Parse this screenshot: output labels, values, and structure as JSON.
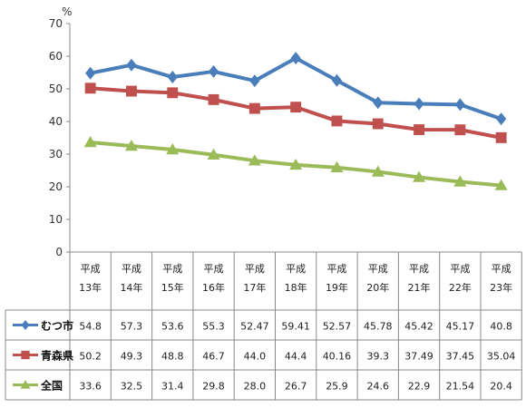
{
  "chart_data": {
    "type": "line",
    "ylabel": "%",
    "ylim": [
      0,
      70
    ],
    "yticks": [
      0,
      10,
      20,
      30,
      40,
      50,
      60,
      70
    ],
    "grid": false,
    "legend": "data-table",
    "categories": [
      [
        "平成",
        "13年"
      ],
      [
        "平成",
        "14年"
      ],
      [
        "平成",
        "15年"
      ],
      [
        "平成",
        "16年"
      ],
      [
        "平成",
        "17年"
      ],
      [
        "平成",
        "18年"
      ],
      [
        "平成",
        "19年"
      ],
      [
        "平成",
        "20年"
      ],
      [
        "平成",
        "21年"
      ],
      [
        "平成",
        "22年"
      ],
      [
        "平成",
        "23年"
      ]
    ],
    "series": [
      {
        "name": "むつ市",
        "color": "#4a7ebb",
        "marker": "diamond",
        "values": [
          54.8,
          57.3,
          53.6,
          55.3,
          52.47,
          59.41,
          52.57,
          45.78,
          45.42,
          45.17,
          40.8
        ],
        "labels": [
          "54.8",
          "57.3",
          "53.6",
          "55.3",
          "52.47",
          "59.41",
          "52.57",
          "45.78",
          "45.42",
          "45.17",
          "40.8"
        ]
      },
      {
        "name": "青森県",
        "color": "#c0504d",
        "marker": "square",
        "values": [
          50.2,
          49.3,
          48.8,
          46.7,
          44.0,
          44.4,
          40.16,
          39.3,
          37.49,
          37.45,
          35.04
        ],
        "labels": [
          "50.2",
          "49.3",
          "48.8",
          "46.7",
          "44.0",
          "44.4",
          "40.16",
          "39.3",
          "37.49",
          "37.45",
          "35.04"
        ]
      },
      {
        "name": "全国",
        "color": "#9bbb59",
        "marker": "triangle",
        "values": [
          33.6,
          32.5,
          31.4,
          29.8,
          28.0,
          26.7,
          25.9,
          24.6,
          22.9,
          21.54,
          20.4
        ],
        "labels": [
          "33.6",
          "32.5",
          "31.4",
          "29.8",
          "28.0",
          "26.7",
          "25.9",
          "24.6",
          "22.9",
          "21.54",
          "20.4"
        ]
      }
    ]
  }
}
